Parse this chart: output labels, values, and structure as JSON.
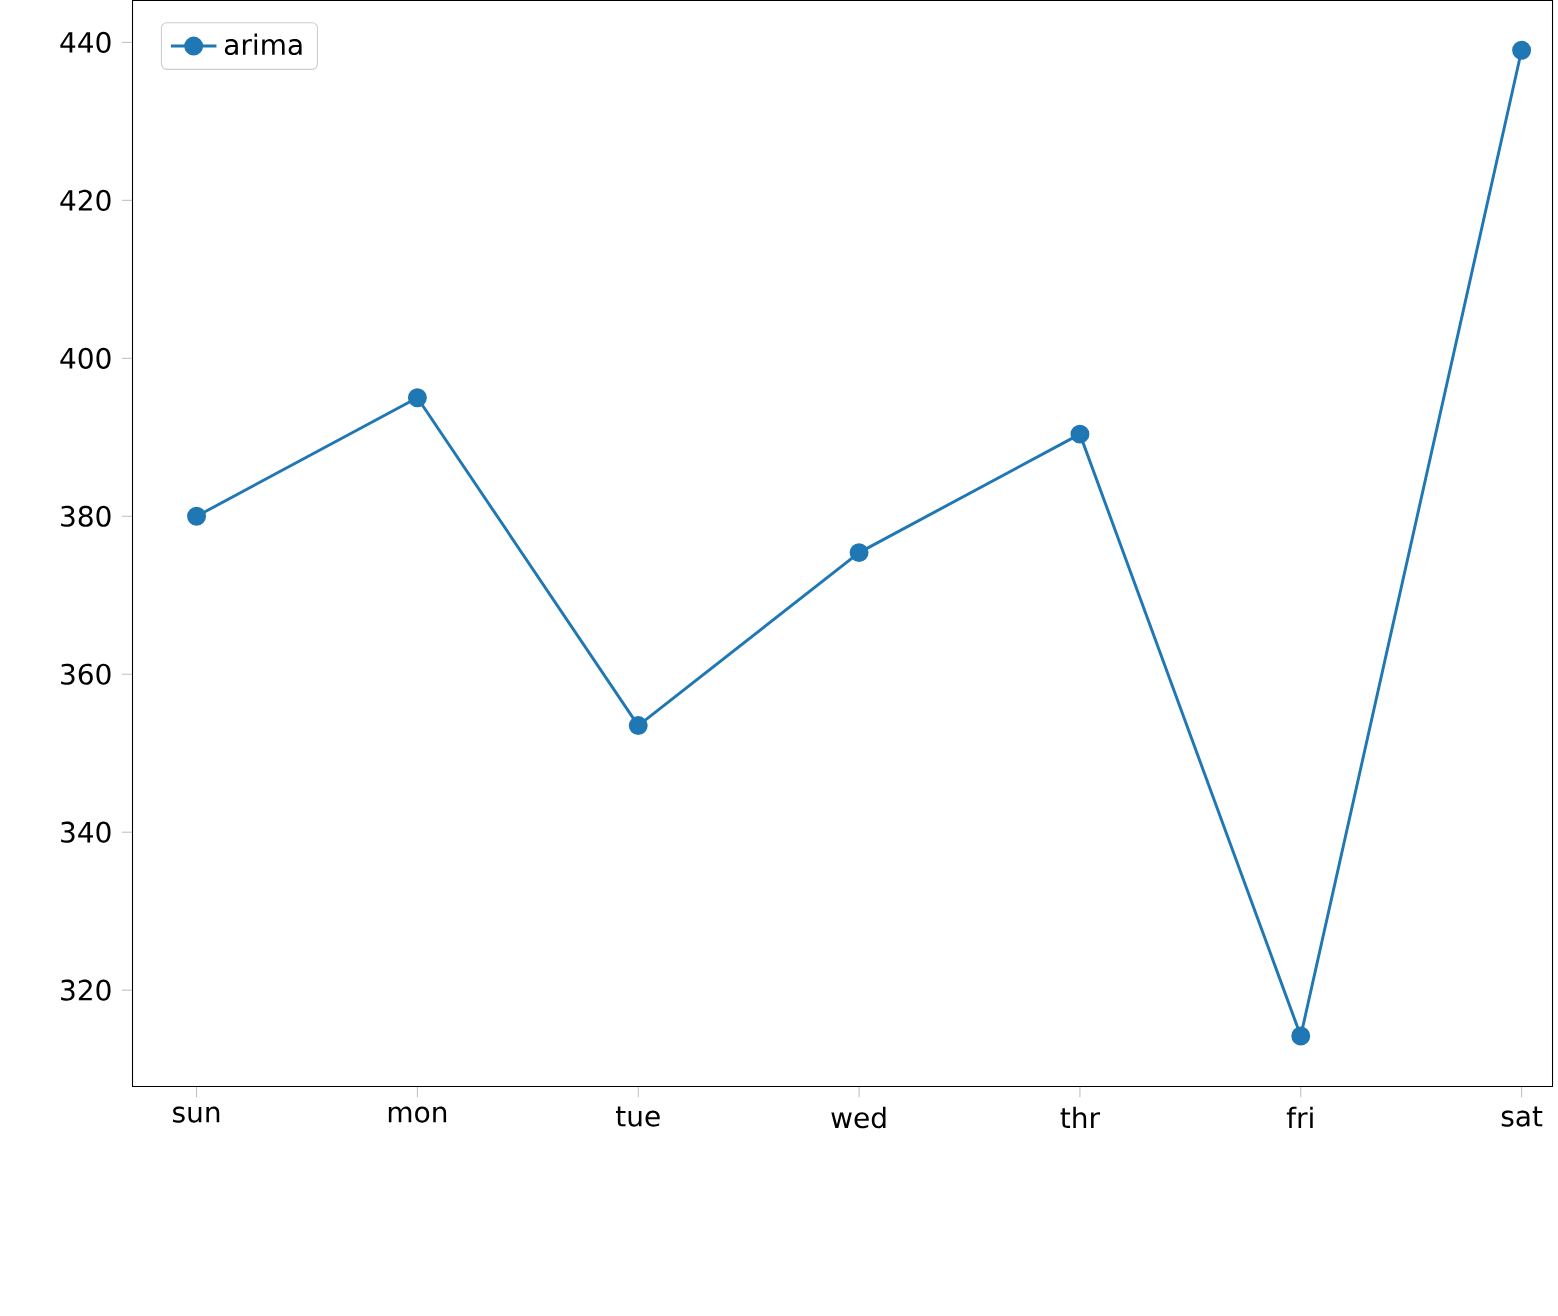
{
  "chart_data": {
    "type": "line",
    "categories": [
      "sun",
      "mon",
      "tue",
      "wed",
      "thr",
      "fri",
      "sat"
    ],
    "series": [
      {
        "name": "arima",
        "color": "#1f77b4",
        "values": [
          380,
          395,
          353.5,
          375.4,
          390.4,
          314.2,
          439
        ]
      }
    ],
    "ylim": [
      307.8,
      445.3
    ],
    "yticks": [
      320,
      340,
      360,
      380,
      400,
      420,
      440
    ],
    "marker": "circle",
    "line_style": "solid",
    "legend": "top left",
    "grid": false
  }
}
